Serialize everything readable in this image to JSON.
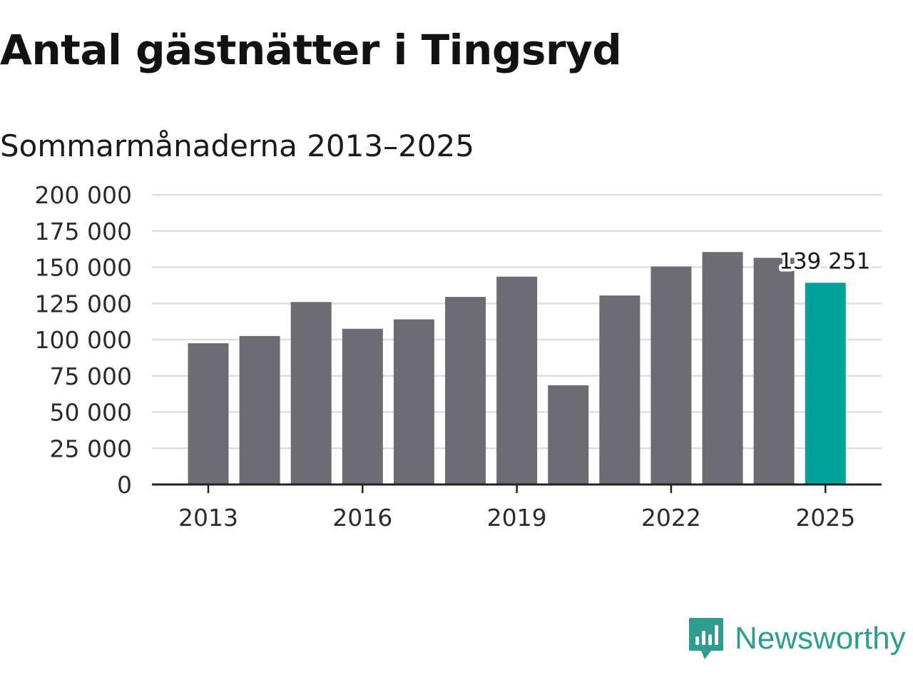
{
  "title": "Antal gästnätter i Tingsryd",
  "subtitle": "Sommarmånaderna 2013–2025",
  "brand": {
    "name": "Newsworthy",
    "color": "#2e9c8f",
    "icon": "newsworthy-logo-icon"
  },
  "colors": {
    "bar": "#6d6c72",
    "highlight": "#00a39a",
    "grid": "#dedede",
    "axis": "#222222"
  },
  "chart_data": {
    "type": "bar",
    "title": "Antal gästnätter i Tingsryd",
    "subtitle": "Sommarmånaderna 2013–2025",
    "categories": [
      2013,
      2014,
      2015,
      2016,
      2017,
      2018,
      2019,
      2020,
      2021,
      2022,
      2023,
      2024,
      2025
    ],
    "values": [
      97500,
      102500,
      126000,
      107500,
      114000,
      129500,
      143500,
      68500,
      130500,
      150500,
      160500,
      156500,
      139251
    ],
    "highlight_index": 12,
    "data_labels": [
      {
        "index": 12,
        "text": "139 251"
      }
    ],
    "x_tick_labels": [
      "2013",
      "2016",
      "2019",
      "2022",
      "2025"
    ],
    "y_tick_labels": [
      "0",
      "25 000",
      "50 000",
      "75 000",
      "100 000",
      "125 000",
      "150 000",
      "175 000",
      "200 000"
    ],
    "y_ticks": [
      0,
      25000,
      50000,
      75000,
      100000,
      125000,
      150000,
      175000,
      200000
    ],
    "ylim": [
      0,
      200000
    ],
    "xlabel": "",
    "ylabel": "",
    "grid": true,
    "legend": false
  }
}
